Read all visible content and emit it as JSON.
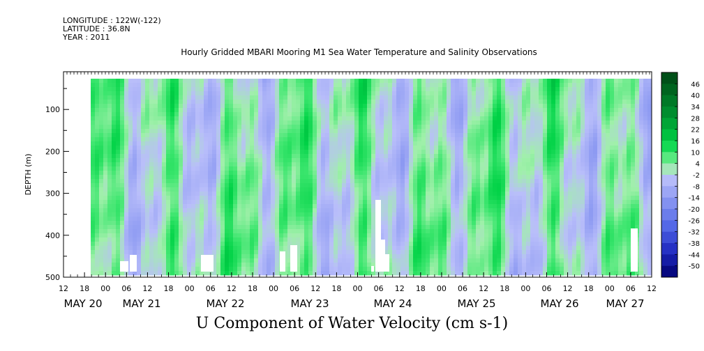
{
  "header": {
    "longitude": "LONGITUDE : 122W(-122)",
    "latitude": "LATITUDE : 36.8N",
    "year": "YEAR : 2011"
  },
  "chart_data": {
    "type": "heatmap",
    "subtitle": "Hourly Gridded MBARI Mooring M1 Sea Water Temperature and Salinity Observations",
    "title": "U Component of Water Velocity (cm s-1)",
    "ylabel": "DEPTH (m)",
    "y_axis": {
      "reversed": true,
      "range": [
        10,
        500
      ],
      "ticks": [
        100,
        200,
        300,
        400,
        500
      ]
    },
    "x_axis": {
      "range_hours_labels": [
        "MAY 20 12:00",
        "MAY 27 14:00"
      ],
      "hour_ticks": [
        "12",
        "18",
        "00",
        "06",
        "12",
        "18",
        "00",
        "06",
        "12",
        "18",
        "00",
        "06",
        "12",
        "18",
        "00",
        "06",
        "12",
        "18",
        "00",
        "06",
        "12",
        "18",
        "00",
        "06",
        "12",
        "18",
        "00",
        "06",
        "12"
      ],
      "day_labels": [
        "MAY 20",
        "MAY 21",
        "MAY 22",
        "MAY 23",
        "MAY 24",
        "MAY 25",
        "MAY 26",
        "MAY 27"
      ]
    },
    "colorbar": {
      "labels": [
        "46",
        "40",
        "34",
        "28",
        "22",
        "16",
        "10",
        "4",
        "-2",
        "-8",
        "-14",
        "-20",
        "-26",
        "-32",
        "-38",
        "-44",
        "-50"
      ],
      "range": [
        -50,
        50
      ]
    },
    "dominant_pattern": "mostly values between -14 and 16 cm/s; alternating bands of positive (green) and negative (blue) flow over depth 20-480 m"
  }
}
